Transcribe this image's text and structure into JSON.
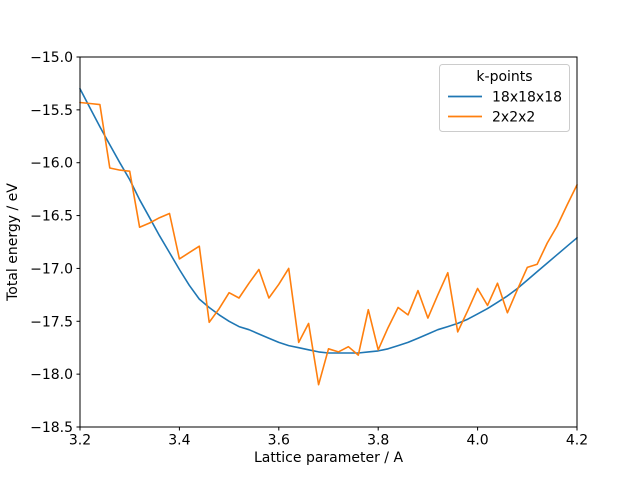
{
  "chart_data": {
    "type": "line",
    "title": "",
    "xlabel": "Lattice parameter / A",
    "ylabel": "Total energy / eV",
    "xlim": [
      3.2,
      4.2
    ],
    "ylim": [
      -18.5,
      -15.0
    ],
    "xticks": [
      3.2,
      3.4,
      3.6,
      3.8,
      4.0,
      4.2
    ],
    "yticks": [
      -15.0,
      -15.5,
      -16.0,
      -16.5,
      -17.0,
      -17.5,
      -18.0,
      -18.5
    ],
    "grid": false,
    "legend_position": "upper right",
    "legend_title": "k-points",
    "x": [
      3.2,
      3.22,
      3.24,
      3.26,
      3.28,
      3.3,
      3.32,
      3.34,
      3.36,
      3.38,
      3.4,
      3.42,
      3.44,
      3.46,
      3.48,
      3.5,
      3.52,
      3.54,
      3.56,
      3.58,
      3.6,
      3.62,
      3.64,
      3.66,
      3.68,
      3.7,
      3.72,
      3.74,
      3.76,
      3.78,
      3.8,
      3.82,
      3.84,
      3.86,
      3.88,
      3.9,
      3.92,
      3.94,
      3.96,
      3.98,
      4.0,
      4.02,
      4.04,
      4.06,
      4.08,
      4.1,
      4.12,
      4.14,
      4.16,
      4.18,
      4.2
    ],
    "series": [
      {
        "name": "18x18x18",
        "color": "#1f77b4",
        "values": [
          -15.3,
          -15.48,
          -15.66,
          -15.83,
          -16.0,
          -16.16,
          -16.35,
          -16.52,
          -16.69,
          -16.85,
          -17.01,
          -17.16,
          -17.29,
          -17.37,
          -17.44,
          -17.5,
          -17.55,
          -17.58,
          -17.62,
          -17.66,
          -17.7,
          -17.73,
          -17.75,
          -17.77,
          -17.79,
          -17.8,
          -17.8,
          -17.8,
          -17.8,
          -17.79,
          -17.78,
          -17.76,
          -17.73,
          -17.7,
          -17.66,
          -17.62,
          -17.58,
          -17.55,
          -17.52,
          -17.48,
          -17.43,
          -17.38,
          -17.32,
          -17.26,
          -17.19,
          -17.11,
          -17.03,
          -16.95,
          -16.87,
          -16.79,
          -16.71
        ]
      },
      {
        "name": "2x2x2",
        "color": "#ff7f0e",
        "values": [
          -15.43,
          -15.44,
          -15.45,
          -16.05,
          -16.07,
          -16.08,
          -16.61,
          -16.57,
          -16.52,
          -16.48,
          -16.91,
          -16.85,
          -16.79,
          -17.51,
          -17.38,
          -17.23,
          -17.28,
          -17.14,
          -17.01,
          -17.28,
          -17.15,
          -17.0,
          -17.7,
          -17.52,
          -18.1,
          -17.76,
          -17.79,
          -17.74,
          -17.82,
          -17.39,
          -17.77,
          -17.56,
          -17.37,
          -17.44,
          -17.21,
          -17.47,
          -17.25,
          -17.04,
          -17.6,
          -17.4,
          -17.19,
          -17.35,
          -17.14,
          -17.42,
          -17.2,
          -16.99,
          -16.96,
          -16.76,
          -16.6,
          -16.4,
          -16.21
        ]
      }
    ]
  }
}
